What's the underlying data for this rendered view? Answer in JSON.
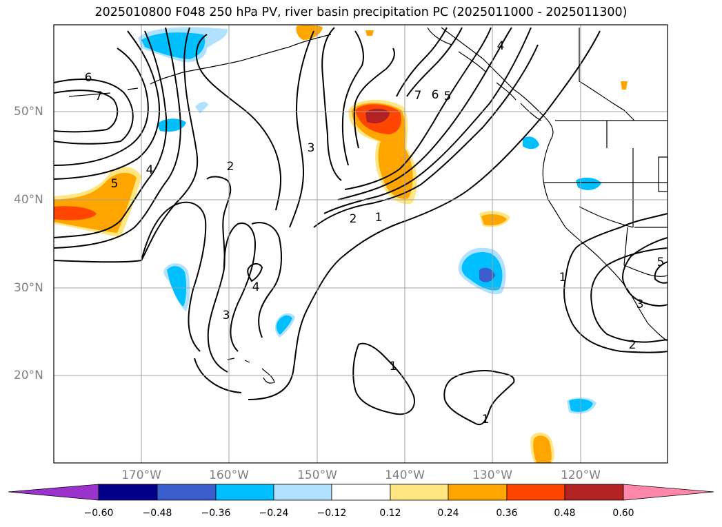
{
  "title": "2025010800 F048 250 hPa PV, river basin precipitation PC (2025011000 - 2025011300)",
  "map": {
    "lat_labels": [
      "50°N",
      "40°N",
      "30°N",
      "20°N"
    ],
    "lon_labels": [
      "170°W",
      "160°W",
      "150°W",
      "140°W",
      "130°W",
      "120°W"
    ],
    "contour_labels": [
      "6",
      "7",
      "5",
      "4",
      "2",
      "3",
      "4",
      "3",
      "2",
      "1",
      "7",
      "6",
      "5",
      "4",
      "1",
      "1",
      "1",
      "2",
      "3",
      "5"
    ]
  },
  "colorbar": {
    "tick_labels": [
      "−0.60",
      "−0.48",
      "−0.36",
      "−0.24",
      "−0.12",
      "0.12",
      "0.24",
      "0.36",
      "0.48",
      "0.60"
    ],
    "colors": [
      "#9933cc",
      "#00008b",
      "#3a5fcd",
      "#00bfff",
      "#b0e2ff",
      "#ffffff",
      "#ffe680",
      "#ffa500",
      "#ff4500",
      "#b22222",
      "#ff88aa"
    ]
  }
}
